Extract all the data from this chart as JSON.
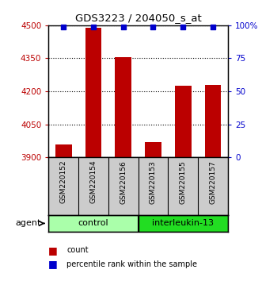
{
  "title": "GDS3223 / 204050_s_at",
  "samples": [
    "GSM220152",
    "GSM220154",
    "GSM220156",
    "GSM220153",
    "GSM220155",
    "GSM220157"
  ],
  "counts": [
    3960,
    4490,
    4355,
    3970,
    4225,
    4230
  ],
  "percentile_ranks": [
    99,
    99,
    99,
    99,
    99,
    99
  ],
  "ylim_left": [
    3900,
    4500
  ],
  "ylim_right": [
    0,
    100
  ],
  "yticks_left": [
    3900,
    4050,
    4200,
    4350,
    4500
  ],
  "yticks_right": [
    0,
    25,
    50,
    75,
    100
  ],
  "ytick_labels_right": [
    "0",
    "25",
    "50",
    "75",
    "100%"
  ],
  "bar_color": "#bb0000",
  "dot_color": "#0000cc",
  "bar_bottom": 3900,
  "groups": [
    {
      "label": "control",
      "indices": [
        0,
        1,
        2
      ],
      "color": "#aaffaa"
    },
    {
      "label": "interleukin-13",
      "indices": [
        3,
        4,
        5
      ],
      "color": "#22dd22"
    }
  ],
  "agent_label": "agent",
  "legend_count_label": "count",
  "legend_pct_label": "percentile rank within the sample",
  "background_color": "#ffffff",
  "plot_bg": "#ffffff"
}
